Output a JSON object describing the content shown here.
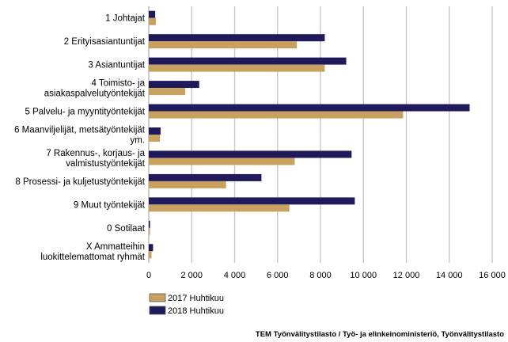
{
  "chart_data": {
    "type": "bar",
    "orientation": "horizontal",
    "title": "",
    "xlabel": "",
    "ylabel": "",
    "xlim": [
      0,
      16000
    ],
    "x_ticks": [
      0,
      2000,
      4000,
      6000,
      8000,
      10000,
      12000,
      14000,
      16000
    ],
    "x_tick_labels": [
      "0",
      "2 000",
      "4 000",
      "6 000",
      "8 000",
      "10 000",
      "12 000",
      "14 000",
      "16 000"
    ],
    "grid": true,
    "legend_position": "bottom-left",
    "categories": [
      "1 Johtajat",
      "2 Erityisasiantuntijat",
      "3 Asiantuntijat",
      "4 Toimisto- ja asiakaspalvelutyöntekijät",
      "5 Palvelu- ja myyntityöntekijät",
      "6 Maanviljelijät, metsätyöntekijät ym.",
      "7 Rakennus-, korjaus- ja valmistustyöntekijät",
      "8 Prosessi- ja kuljetustyöntekijät",
      "9 Muut työntekijät",
      "0 Sotilaat",
      "X Ammatteihin luokittelemattomat ryhmät"
    ],
    "category_lines": [
      [
        "1 Johtajat"
      ],
      [
        "2 Erityisasiantuntijat"
      ],
      [
        "3 Asiantuntijat"
      ],
      [
        "4 Toimisto- ja",
        "asiakaspalvelutyöntekijät"
      ],
      [
        "5 Palvelu- ja myyntityöntekijät"
      ],
      [
        "6 Maanviljelijät, metsätyöntekijät",
        "ym."
      ],
      [
        "7 Rakennus-, korjaus- ja",
        "valmistustyöntekijät"
      ],
      [
        "8 Prosessi- ja kuljetustyöntekijät"
      ],
      [
        "9 Muut työntekijät"
      ],
      [
        "0 Sotilaat"
      ],
      [
        "X Ammatteihin",
        "luokittelemattomat ryhmät"
      ]
    ],
    "series": [
      {
        "name": "2018 Huhtikuu",
        "color": "#1f1a5c",
        "values": [
          300,
          8200,
          9200,
          2350,
          14950,
          550,
          9450,
          5250,
          9600,
          60,
          200
        ]
      },
      {
        "name": "2017 Huhtikuu",
        "color": "#c9a15f",
        "values": [
          330,
          6900,
          8200,
          1700,
          11850,
          520,
          6800,
          3600,
          6550,
          40,
          130
        ]
      }
    ],
    "legend": [
      {
        "name": "2017 Huhtikuu",
        "color": "#c9a15f"
      },
      {
        "name": "2018 Huhtikuu",
        "color": "#1f1a5c"
      }
    ],
    "source": "TEM Työnvälitystilasto / Työ- ja elinkeinoministeriö, Työnvälitystilasto"
  }
}
